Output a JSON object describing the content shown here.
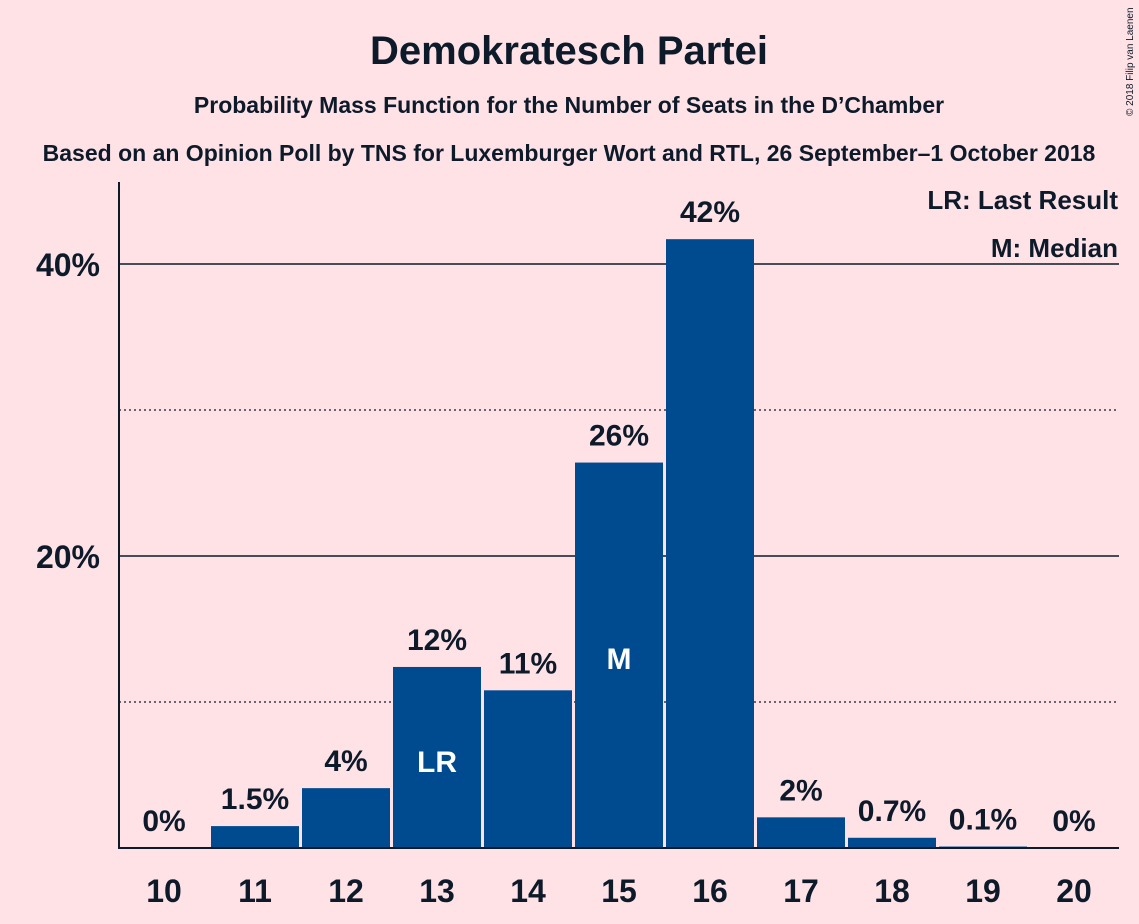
{
  "chart_data": {
    "type": "bar",
    "title": "Demokratesch Partei",
    "subtitle": "Probability Mass Function for the Number of Seats in the D’Chamber",
    "subtitle2": "Based on an Opinion Poll by TNS for Luxemburger Wort and RTL, 26 September–1 October 2018",
    "categories": [
      "10",
      "11",
      "12",
      "13",
      "14",
      "15",
      "16",
      "17",
      "18",
      "19",
      "20"
    ],
    "values": [
      0,
      1.5,
      4.1,
      12.4,
      10.8,
      26.4,
      41.7,
      2.1,
      0.7,
      0.1,
      0
    ],
    "value_labels": [
      "0%",
      "1.5%",
      "4%",
      "12%",
      "11%",
      "26%",
      "42%",
      "2%",
      "0.7%",
      "0.1%",
      "0%"
    ],
    "inner_labels": {
      "13": "LR",
      "15": "M"
    },
    "ylim": [
      0,
      45.5
    ],
    "yticks_major": [
      {
        "value": 20,
        "label": "20%"
      },
      {
        "value": 40,
        "label": "40%"
      }
    ],
    "yticks_minor": [
      10,
      30
    ],
    "xlabel": "",
    "ylabel": "",
    "legend": [
      "LR: Last Result",
      "M: Median"
    ],
    "legend_position": "top-right",
    "copyright": "© 2018 Filip van Laenen",
    "colors": {
      "background": "#FFE2E6",
      "bar": "#004A8F",
      "text": "#0c1a2a"
    }
  }
}
